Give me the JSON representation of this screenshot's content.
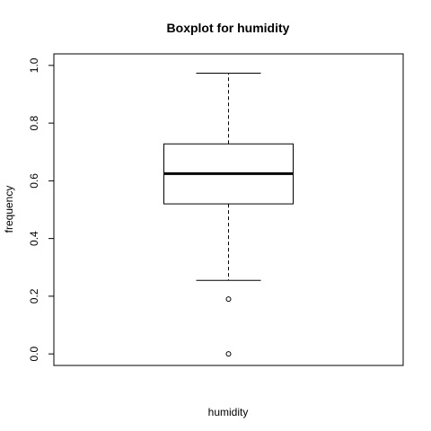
{
  "chart_data": {
    "type": "boxplot",
    "title": "Boxplot for humidity",
    "xlabel": "humidity",
    "ylabel": "frequency",
    "ylim": [
      -0.04,
      1.04
    ],
    "y_ticks": [
      0.0,
      0.2,
      0.4,
      0.6,
      0.8,
      1.0
    ],
    "y_tick_labels": [
      "0.0",
      "0.2",
      "0.4",
      "0.6",
      "0.8",
      "1.0"
    ],
    "grid": false,
    "series": [
      {
        "whisker_low": 0.255,
        "q1": 0.52,
        "median": 0.625,
        "q3": 0.728,
        "whisker_high": 0.973,
        "outliers": [
          0.19,
          0.0
        ]
      }
    ]
  }
}
